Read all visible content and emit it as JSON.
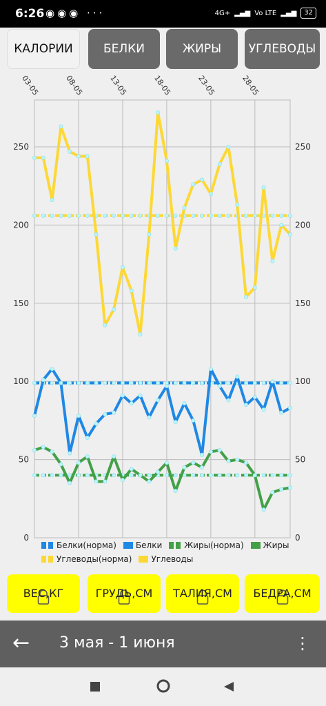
{
  "status": {
    "time": "6:26",
    "network": "4G+",
    "volte": "Vo LTE",
    "battery": "32"
  },
  "tabs": [
    {
      "label": "КАЛОРИИ",
      "active": true
    },
    {
      "label": "БЕЛКИ",
      "active": false
    },
    {
      "label": "ЖИРЫ",
      "active": false
    },
    {
      "label": "УГЛЕВОДЫ",
      "active": false
    }
  ],
  "chart_data": {
    "type": "line",
    "x_labels": [
      "03-05",
      "08-05",
      "13-05",
      "18-05",
      "23-05",
      "28-05"
    ],
    "x_label_index": [
      0,
      5,
      10,
      15,
      20,
      25
    ],
    "n_points": 30,
    "ylim": [
      0,
      280
    ],
    "yticks": [
      0,
      50,
      100,
      150,
      200,
      250
    ],
    "grid": true,
    "series": [
      {
        "name": "Белки(норма)",
        "color": "#1e88e5",
        "dashed": true,
        "values": [
          99,
          99,
          99,
          99,
          99,
          99,
          99,
          99,
          99,
          99,
          99,
          99,
          99,
          99,
          99,
          99,
          99,
          99,
          99,
          99,
          99,
          99,
          99,
          99,
          99,
          99,
          99,
          99,
          99,
          99
        ]
      },
      {
        "name": "Белки",
        "color": "#1e88e5",
        "dashed": false,
        "values": [
          78,
          101,
          108,
          99,
          54,
          78,
          64,
          73,
          79,
          80,
          91,
          86,
          91,
          77,
          88,
          97,
          74,
          86,
          75,
          53,
          108,
          97,
          88,
          103,
          85,
          90,
          82,
          100,
          80,
          83
        ]
      },
      {
        "name": "Жиры(норма)",
        "color": "#43a047",
        "dashed": true,
        "values": [
          40,
          40,
          40,
          40,
          40,
          40,
          40,
          40,
          40,
          40,
          40,
          40,
          40,
          40,
          40,
          40,
          40,
          40,
          40,
          40,
          40,
          40,
          40,
          40,
          40,
          40,
          40,
          40,
          40,
          40
        ]
      },
      {
        "name": "Жиры",
        "color": "#43a047",
        "dashed": false,
        "values": [
          56,
          58,
          55,
          47,
          35,
          48,
          52,
          36,
          36,
          52,
          37,
          44,
          40,
          36,
          42,
          48,
          30,
          45,
          48,
          45,
          55,
          56,
          49,
          50,
          48,
          40,
          18,
          29,
          31,
          32
        ]
      },
      {
        "name": "Углеводы(норма)",
        "color": "#fdd835",
        "dashed": true,
        "values": [
          206,
          206,
          206,
          206,
          206,
          206,
          206,
          206,
          206,
          206,
          206,
          206,
          206,
          206,
          206,
          206,
          206,
          206,
          206,
          206,
          206,
          206,
          206,
          206,
          206,
          206,
          206,
          206,
          206,
          206
        ]
      },
      {
        "name": "Углеводы",
        "color": "#fdd835",
        "dashed": false,
        "values": [
          243,
          243,
          216,
          263,
          247,
          244,
          244,
          194,
          136,
          146,
          173,
          158,
          130,
          194,
          272,
          241,
          185,
          211,
          226,
          229,
          220,
          239,
          250,
          213,
          154,
          160,
          224,
          177,
          200,
          194
        ]
      }
    ]
  },
  "measures": [
    {
      "label": "ВЕС,КГ"
    },
    {
      "label": "ГРУДЬ,СМ"
    },
    {
      "label": "ТАЛИЯ,СМ"
    },
    {
      "label": "БЕДРА,СМ"
    }
  ],
  "bottombar": {
    "range": "3 мая - 1 июня"
  },
  "colors": {
    "accent_yellow": "#ffff00",
    "tab_gray": "#6a6a6a",
    "bar_gray": "#5f5f5f"
  }
}
